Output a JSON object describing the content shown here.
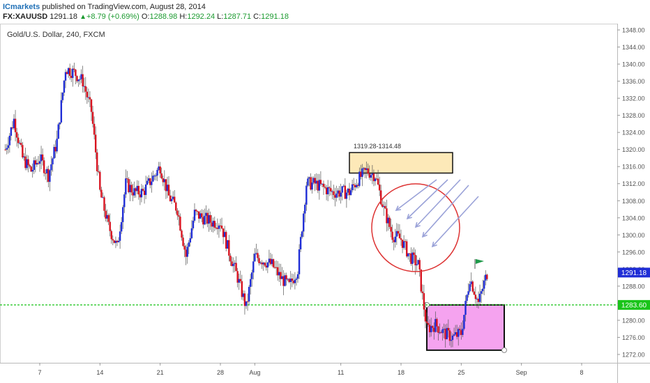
{
  "header": {
    "brand": "ICmarkets",
    "published": " published on TradingView.com, August 28, 2014",
    "symbol": "FX:XAUUSD",
    "last": "1291.18",
    "change_arrow": "▲",
    "change": "+8.79 (+0.69%)",
    "open_label": "O:",
    "open": "1288.98",
    "high_label": "H:",
    "high": "1292.24",
    "low_label": "L:",
    "low": "1287.71",
    "close_label": "C:",
    "close": "1291.18"
  },
  "chart_data": {
    "type": "candlestick",
    "title": "Gold/U.S. Dollar, 240, FXCM",
    "ylim": [
      1270,
      1350
    ],
    "y_ticks": [
      1272,
      1276,
      1280,
      1284,
      1288,
      1292,
      1296,
      1300,
      1304,
      1308,
      1312,
      1316,
      1320,
      1324,
      1328,
      1332,
      1336,
      1340,
      1344,
      1348
    ],
    "x_ticks": [
      {
        "label": "7",
        "date": "2014-07-07"
      },
      {
        "label": "14",
        "date": "2014-07-14"
      },
      {
        "label": "21",
        "date": "2014-07-21"
      },
      {
        "label": "28",
        "date": "2014-07-28"
      },
      {
        "label": "Aug",
        "date": "2014-08-01"
      },
      {
        "label": "11",
        "date": "2014-08-11"
      },
      {
        "label": "18",
        "date": "2014-08-18"
      },
      {
        "label": "25",
        "date": "2014-08-25"
      },
      {
        "label": "Sep",
        "date": "2014-09-01"
      },
      {
        "label": "8",
        "date": "2014-09-08"
      }
    ],
    "price_path": [
      {
        "date": "2014-07-03",
        "price": 1320
      },
      {
        "date": "2014-07-04",
        "price": 1327
      },
      {
        "date": "2014-07-05",
        "price": 1318
      },
      {
        "date": "2014-07-06",
        "price": 1315
      },
      {
        "date": "2014-07-07",
        "price": 1318
      },
      {
        "date": "2014-07-08",
        "price": 1314
      },
      {
        "date": "2014-07-09",
        "price": 1322
      },
      {
        "date": "2014-07-10",
        "price": 1339
      },
      {
        "date": "2014-07-11",
        "price": 1338
      },
      {
        "date": "2014-07-12",
        "price": 1336
      },
      {
        "date": "2014-07-13",
        "price": 1329
      },
      {
        "date": "2014-07-14",
        "price": 1310
      },
      {
        "date": "2014-07-15",
        "price": 1302
      },
      {
        "date": "2014-07-16",
        "price": 1297
      },
      {
        "date": "2014-07-17",
        "price": 1312
      },
      {
        "date": "2014-07-18",
        "price": 1310
      },
      {
        "date": "2014-07-19",
        "price": 1310
      },
      {
        "date": "2014-07-20",
        "price": 1313
      },
      {
        "date": "2014-07-21",
        "price": 1316
      },
      {
        "date": "2014-07-22",
        "price": 1309
      },
      {
        "date": "2014-07-23",
        "price": 1306
      },
      {
        "date": "2014-07-24",
        "price": 1295
      },
      {
        "date": "2014-07-25",
        "price": 1305
      },
      {
        "date": "2014-07-26",
        "price": 1304
      },
      {
        "date": "2014-07-27",
        "price": 1303
      },
      {
        "date": "2014-07-28",
        "price": 1303
      },
      {
        "date": "2014-07-29",
        "price": 1296
      },
      {
        "date": "2014-07-30",
        "price": 1290
      },
      {
        "date": "2014-07-31",
        "price": 1283
      },
      {
        "date": "2014-08-01",
        "price": 1295
      },
      {
        "date": "2014-08-02",
        "price": 1294
      },
      {
        "date": "2014-08-03",
        "price": 1293
      },
      {
        "date": "2014-08-04",
        "price": 1290
      },
      {
        "date": "2014-08-05",
        "price": 1288
      },
      {
        "date": "2014-08-06",
        "price": 1292
      },
      {
        "date": "2014-08-07",
        "price": 1312
      },
      {
        "date": "2014-08-08",
        "price": 1312
      },
      {
        "date": "2014-08-09",
        "price": 1311
      },
      {
        "date": "2014-08-10",
        "price": 1310
      },
      {
        "date": "2014-08-11",
        "price": 1310
      },
      {
        "date": "2014-08-12",
        "price": 1310
      },
      {
        "date": "2014-08-13",
        "price": 1313
      },
      {
        "date": "2014-08-14",
        "price": 1315
      },
      {
        "date": "2014-08-15",
        "price": 1314
      },
      {
        "date": "2014-08-16",
        "price": 1306
      },
      {
        "date": "2014-08-17",
        "price": 1300
      },
      {
        "date": "2014-08-18",
        "price": 1299
      },
      {
        "date": "2014-08-19",
        "price": 1295
      },
      {
        "date": "2014-08-20",
        "price": 1293
      },
      {
        "date": "2014-08-21",
        "price": 1278
      },
      {
        "date": "2014-08-22",
        "price": 1279
      },
      {
        "date": "2014-08-23",
        "price": 1277
      },
      {
        "date": "2014-08-24",
        "price": 1276
      },
      {
        "date": "2014-08-25",
        "price": 1277
      },
      {
        "date": "2014-08-26",
        "price": 1290
      },
      {
        "date": "2014-08-27",
        "price": 1284
      },
      {
        "date": "2014-08-28",
        "price": 1291
      }
    ],
    "last_price": 1291.18,
    "support_level": 1283.6,
    "resistance_label": "1319.28-1314.48",
    "resistance_zone": {
      "from": "2014-08-12",
      "to": "2014-08-24",
      "price_low": 1314.48,
      "price_high": 1319.28
    },
    "support_zone": {
      "from": "2014-08-21",
      "to": "2014-08-30",
      "price_low": 1273,
      "price_high": 1283.6
    },
    "colors": {
      "bull": "#1f2dd6",
      "bear": "#d8121f",
      "support_line": "#19c419",
      "resistance_fill": "#fde9b8",
      "support_fill": "#f5a3ef",
      "circle": "#dd3333",
      "arrows": "#9aa2d8",
      "flag": "#1f9a4a",
      "price_tag": "#1f2dd6",
      "level_tag": "#19c419"
    }
  }
}
